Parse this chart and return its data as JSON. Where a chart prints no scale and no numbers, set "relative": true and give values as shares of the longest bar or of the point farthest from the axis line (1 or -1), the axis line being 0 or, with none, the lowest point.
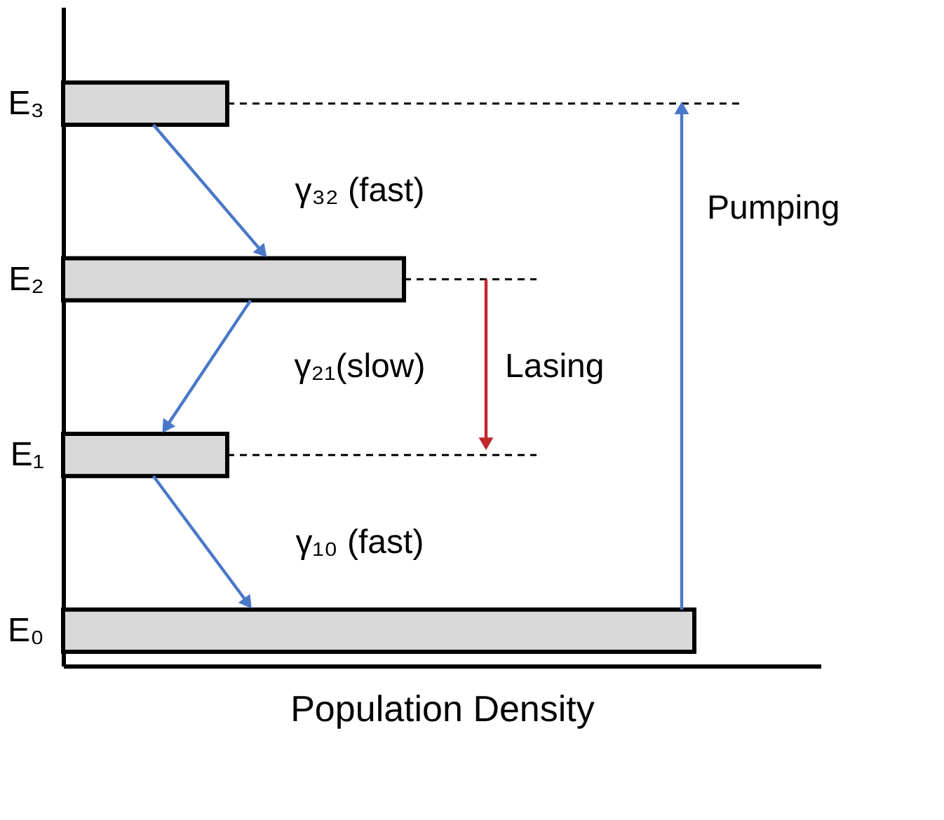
{
  "chart_data": {
    "type": "bar",
    "orientation": "horizontal",
    "relative": true,
    "categories": [
      "E₃",
      "E₂",
      "E₁",
      "E₀"
    ],
    "values": [
      0.26,
      0.54,
      0.26,
      1
    ],
    "color": "#d9d9d9",
    "xlabel": "Population Density",
    "annotations": [
      "γ₃₂ (fast)",
      "γ₂₁(slow)",
      "γ₁₀ (fast)",
      "Lasing",
      "Pumping"
    ],
    "ref_lines": [
      {
        "axis": "y",
        "value": "E₃",
        "line_style": "dashed",
        "color": "#000000"
      },
      {
        "axis": "y",
        "value": "E₂",
        "line_style": "dashed",
        "color": "#000000"
      },
      {
        "axis": "y",
        "value": "E₁",
        "line_style": "dashed",
        "color": "#000000"
      }
    ],
    "grid": false,
    "tick_labels": "y"
  }
}
